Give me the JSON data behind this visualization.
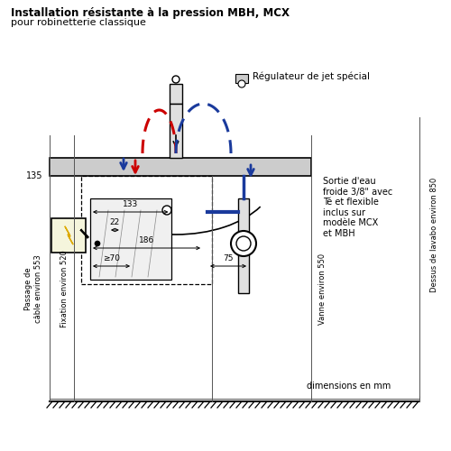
{
  "title_bold": "Installation résistante à la pression MBH, MCX",
  "title_sub": "pour robinetterie classique",
  "bg_color": "#ffffff",
  "red_color": "#cc0000",
  "blue_color": "#1a3a9c",
  "annotations": {
    "regulateur": "Régulateur de jet spécial",
    "sortie": "Sortie d'eau\nfroide 3/8\" avec\nTé et flexible\ninclus sur\nmodèle MCX\net MBH",
    "dessus": "Dessus de lavabo environ 850",
    "vanne": "Vanne environ 550",
    "passage": "Passage de\ncâble environ 553",
    "fixation": "Fixation environ 520",
    "dimensions": "dimensions en mm",
    "dim_135": "135",
    "dim_133": "133",
    "dim_22": "22",
    "dim_186": "186",
    "dim_70": "≥70",
    "dim_75": "75"
  }
}
